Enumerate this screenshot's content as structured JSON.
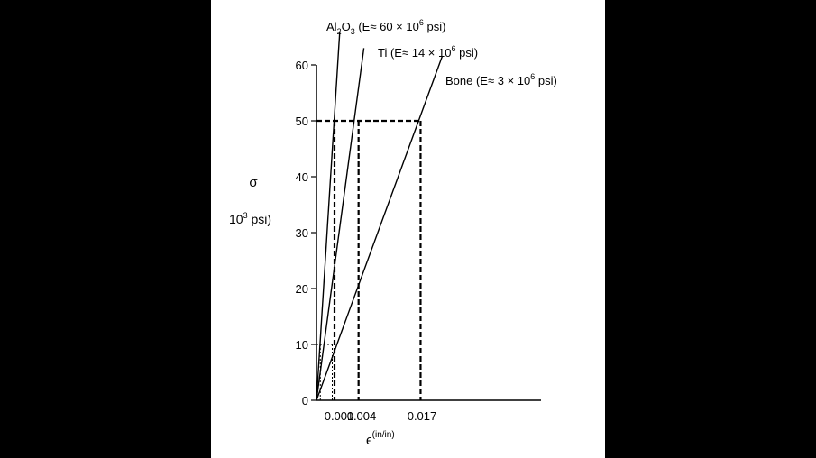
{
  "chart_data": {
    "type": "line",
    "title": "",
    "xlabel": "ϵ",
    "xlabel_superscript": "(in/in)",
    "ylabel_symbol": "σ",
    "ylabel_unit_base": "10",
    "ylabel_unit_exp": "3",
    "ylabel_unit_rest": " psi)",
    "ylim": [
      0,
      60
    ],
    "yticks": [
      0,
      10,
      20,
      30,
      40,
      50,
      60
    ],
    "xticks": [
      {
        "value": 0.001,
        "label": "0.001"
      },
      {
        "value": 0.004,
        "label": "0.004"
      },
      {
        "value": 0.017,
        "label": "0.017"
      }
    ],
    "series": [
      {
        "name": "Al2O3 (E≈60×10^6 psi)",
        "label_parts": [
          "Al",
          "2",
          "O",
          "3",
          " (E",
          "≈",
          " 60 × 10",
          "6",
          " psi)"
        ],
        "x": [
          0,
          0.0011
        ],
        "y": [
          0,
          66
        ],
        "color": "#000000"
      },
      {
        "name": "Ti (E≈14×10^6 psi)",
        "label_parts": [
          "Ti (E",
          "≈",
          " 14 × 10",
          "6",
          " psi)"
        ],
        "x": [
          0,
          0.0045
        ],
        "y": [
          0,
          63
        ],
        "color": "#000000"
      },
      {
        "name": "Bone (E≈3×10^6 psi)",
        "label_parts": [
          "Bone (E",
          "≈",
          " 3 × 10",
          "6",
          " psi)"
        ],
        "x": [
          0,
          0.0205
        ],
        "y": [
          0,
          61.5
        ],
        "color": "#000000"
      }
    ],
    "reference_lines": {
      "level_high": 50,
      "level_high_x": [
        0.0008,
        0.0036,
        0.0167
      ],
      "level_low": 10,
      "level_low_x": [
        0.00017,
        0.0007
      ]
    },
    "grid": false,
    "legend": "none"
  }
}
